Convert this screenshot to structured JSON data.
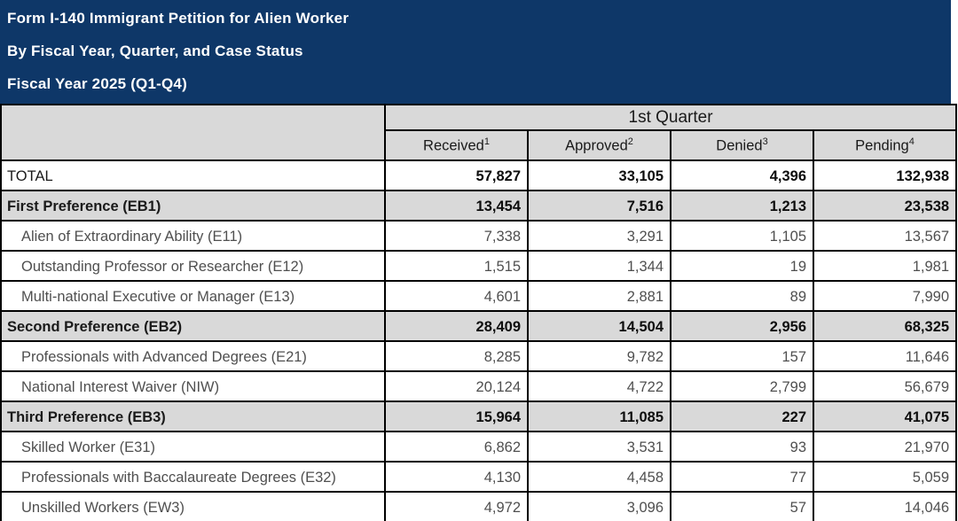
{
  "colors": {
    "banner_navy": "#0E3768",
    "header_gray": "#D9D9D9",
    "border_black": "#000000",
    "text_dark": "#1A1A1A",
    "text_muted": "#4F4F4F"
  },
  "header": {
    "line1": "Form I-140 Immigrant Petition for Alien Worker",
    "line2": "By Fiscal Year, Quarter, and Case Status",
    "line3": "Fiscal Year 2025 (Q1-Q4)"
  },
  "table": {
    "quarter_label": "1st Quarter",
    "columns": [
      {
        "label": "Received",
        "sup": "1"
      },
      {
        "label": "Approved",
        "sup": "2"
      },
      {
        "label": "Denied",
        "sup": "3"
      },
      {
        "label": "Pending",
        "sup": "4"
      }
    ],
    "rows": [
      {
        "label": "TOTAL",
        "type": "total",
        "values": [
          "57,827",
          "33,105",
          "4,396",
          "132,938"
        ]
      },
      {
        "label": "First Preference (EB1)",
        "type": "section",
        "values": [
          "13,454",
          "7,516",
          "1,213",
          "23,538"
        ]
      },
      {
        "label": "Alien of Extraordinary Ability (E11)",
        "type": "sub",
        "values": [
          "7,338",
          "3,291",
          "1,105",
          "13,567"
        ]
      },
      {
        "label": "Outstanding Professor or Researcher (E12)",
        "type": "sub",
        "values": [
          "1,515",
          "1,344",
          "19",
          "1,981"
        ]
      },
      {
        "label": "Multi-national Executive or Manager (E13)",
        "type": "sub",
        "values": [
          "4,601",
          "2,881",
          "89",
          "7,990"
        ]
      },
      {
        "label": "Second Preference (EB2)",
        "type": "section",
        "values": [
          "28,409",
          "14,504",
          "2,956",
          "68,325"
        ]
      },
      {
        "label": "Professionals with Advanced Degrees (E21)",
        "type": "sub",
        "values": [
          "8,285",
          "9,782",
          "157",
          "11,646"
        ]
      },
      {
        "label": "National Interest Waiver (NIW)",
        "type": "sub",
        "values": [
          "20,124",
          "4,722",
          "2,799",
          "56,679"
        ]
      },
      {
        "label": "Third Preference (EB3)",
        "type": "section",
        "values": [
          "15,964",
          "11,085",
          "227",
          "41,075"
        ]
      },
      {
        "label": "Skilled Worker (E31)",
        "type": "sub",
        "values": [
          "6,862",
          "3,531",
          "93",
          "21,970"
        ]
      },
      {
        "label": "Professionals with Baccalaureate Degrees (E32)",
        "type": "sub",
        "values": [
          "4,130",
          "4,458",
          "77",
          "5,059"
        ]
      },
      {
        "label": "Unskilled Workers (EW3)",
        "type": "sub",
        "values": [
          "4,972",
          "3,096",
          "57",
          "14,046"
        ]
      }
    ]
  }
}
